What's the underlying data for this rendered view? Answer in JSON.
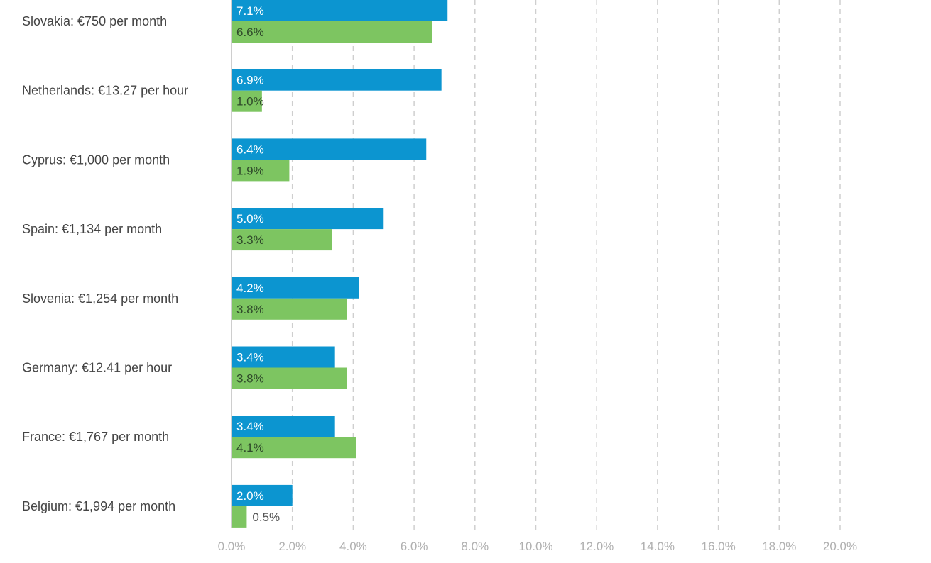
{
  "chart_data": {
    "type": "bar",
    "orientation": "horizontal",
    "categories": [
      "Slovakia: €750 per month",
      "Netherlands: €13.27 per hour",
      "Cyprus: €1,000 per month",
      "Spain: €1,134 per month",
      "Slovenia: €1,254 per month",
      "Germany: €12.41 per hour",
      "France: €1,767 per month",
      "Belgium: €1,994 per month"
    ],
    "series": [
      {
        "color": "#0c95d0",
        "values": [
          7.1,
          6.9,
          6.4,
          5.0,
          4.2,
          3.4,
          3.4,
          2.0
        ],
        "labels": [
          "7.1%",
          "6.9%",
          "6.4%",
          "5.0%",
          "4.2%",
          "3.4%",
          "3.4%",
          "2.0%"
        ]
      },
      {
        "color": "#7dc561",
        "values": [
          6.6,
          1.0,
          1.9,
          3.3,
          3.8,
          3.8,
          4.1,
          0.5
        ],
        "labels": [
          "6.6%",
          "1.0%",
          "1.9%",
          "3.3%",
          "3.8%",
          "3.8%",
          "4.1%",
          "0.5%"
        ]
      }
    ],
    "xlim": [
      0,
      20
    ],
    "x_ticks": [
      0,
      2,
      4,
      6,
      8,
      10,
      12,
      14,
      16,
      18,
      20
    ],
    "x_tick_labels": [
      "0.0%",
      "2.0%",
      "4.0%",
      "6.0%",
      "8.0%",
      "10.0%",
      "12.0%",
      "14.0%",
      "16.0%",
      "18.0%",
      "20.0%"
    ],
    "grid": "vertical dashed",
    "title": "",
    "xlabel": "",
    "ylabel": ""
  }
}
